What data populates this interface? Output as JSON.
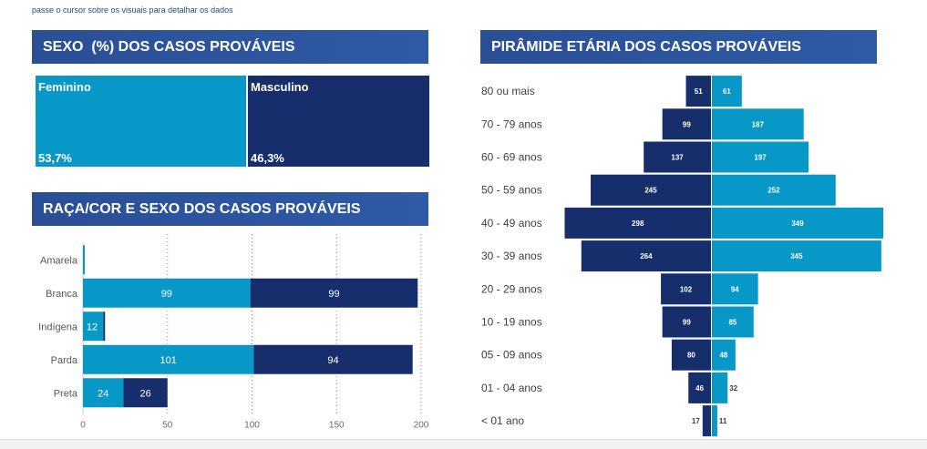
{
  "hint": "passe o cursor sobre os visuais para detalhar os dados",
  "colors": {
    "feminino": "#0798c7",
    "masculino": "#162f6c",
    "header": "#2f5597"
  },
  "sexo": {
    "title": "SEXO  (%) DOS CASOS PROVÁVEIS",
    "cells": [
      {
        "label": "Feminino",
        "value": "53,7%",
        "share": 53.7
      },
      {
        "label": "Masculino",
        "value": "46,3%",
        "share": 46.3
      }
    ]
  },
  "raca": {
    "title": "RAÇA/COR E SEXO DOS CASOS PROVÁVEIS"
  },
  "piramide": {
    "title": "PIRÂMIDE ETÁRIA DOS CASOS PROVÁVEIS"
  },
  "chart_data": [
    {
      "type": "bar",
      "orientation": "horizontal",
      "stacked": true,
      "categories": [
        "Amarela",
        "Branca",
        "Indígena",
        "Parda",
        "Preta"
      ],
      "series": [
        {
          "values": [
            1,
            99,
            12,
            101,
            24
          ]
        },
        {
          "values": [
            0,
            99,
            1,
            94,
            26
          ]
        }
      ],
      "data_labels": [
        [
          "",
          "99",
          "12",
          "101",
          "24"
        ],
        [
          "",
          "99",
          "",
          "94",
          "26"
        ]
      ],
      "x_ticks": [
        0,
        50,
        100,
        150,
        200
      ],
      "xlim": [
        0,
        200
      ],
      "grid": "vertical dotted"
    },
    {
      "type": "bar",
      "orientation": "horizontal",
      "subtype": "population-pyramid",
      "categories": [
        "80 ou mais",
        "70 - 79 anos",
        "60 - 69 anos",
        "50 - 59 anos",
        "40 - 49 anos",
        "30 - 39 anos",
        "20 - 29 anos",
        "10 - 19 anos",
        "05 - 09 anos",
        "01 - 04 anos",
        "< 01 ano"
      ],
      "series": [
        {
          "side": "left",
          "values": [
            51,
            99,
            137,
            245,
            298,
            264,
            102,
            99,
            80,
            46,
            17
          ]
        },
        {
          "side": "right",
          "values": [
            61,
            187,
            197,
            252,
            349,
            345,
            94,
            85,
            48,
            32,
            11
          ]
        }
      ]
    }
  ]
}
